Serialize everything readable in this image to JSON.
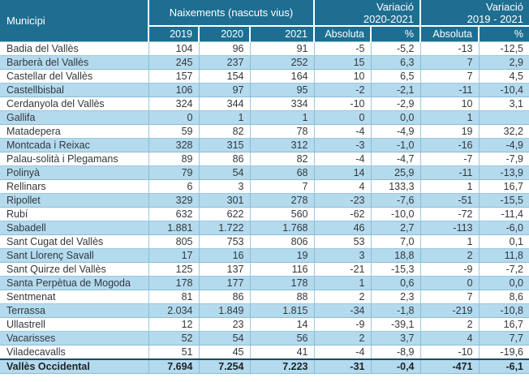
{
  "colors": {
    "header_bg": "#1e6e91",
    "header_text": "#ffffff",
    "stripe_bg": "#b4daee",
    "grid_line": "#9cc8de",
    "total_top_border": "#1a4a63",
    "body_text": "#33383d"
  },
  "chart_data": {
    "type": "table",
    "title": "",
    "column_groups": [
      {
        "label": "Municipi",
        "span": 1
      },
      {
        "label": "Naixements (nascuts vius)",
        "span": 3
      },
      {
        "label": "Variació",
        "sublabel": "2020-2021",
        "span": 2
      },
      {
        "label": "Variació",
        "sublabel": "2019 - 2021",
        "span": 2
      }
    ],
    "columns": [
      "Municipi",
      "2019",
      "2020",
      "2021",
      "Absoluta",
      "%",
      "Absoluta",
      "%"
    ],
    "rows": [
      [
        "Badia del Vallès",
        "104",
        "96",
        "91",
        "-5",
        "-5,2",
        "-13",
        "-12,5"
      ],
      [
        "Barberà del Vallès",
        "245",
        "237",
        "252",
        "15",
        "6,3",
        "7",
        "2,9"
      ],
      [
        "Castellar del Vallès",
        "157",
        "154",
        "164",
        "10",
        "6,5",
        "7",
        "4,5"
      ],
      [
        "Castellbisbal",
        "106",
        "97",
        "95",
        "-2",
        "-2,1",
        "-11",
        "-10,4"
      ],
      [
        "Cerdanyola del Vallès",
        "324",
        "344",
        "334",
        "-10",
        "-2,9",
        "10",
        "3,1"
      ],
      [
        "Gallifa",
        "0",
        "1",
        "1",
        "0",
        "0,0",
        "1",
        ""
      ],
      [
        "Matadepera",
        "59",
        "82",
        "78",
        "-4",
        "-4,9",
        "19",
        "32,2"
      ],
      [
        "Montcada i Reixac",
        "328",
        "315",
        "312",
        "-3",
        "-1,0",
        "-16",
        "-4,9"
      ],
      [
        "Palau-solità i Plegamans",
        "89",
        "86",
        "82",
        "-4",
        "-4,7",
        "-7",
        "-7,9"
      ],
      [
        "Polinyà",
        "79",
        "54",
        "68",
        "14",
        "25,9",
        "-11",
        "-13,9"
      ],
      [
        "Rellinars",
        "6",
        "3",
        "7",
        "4",
        "133,3",
        "1",
        "16,7"
      ],
      [
        "Ripollet",
        "329",
        "301",
        "278",
        "-23",
        "-7,6",
        "-51",
        "-15,5"
      ],
      [
        "Rubí",
        "632",
        "622",
        "560",
        "-62",
        "-10,0",
        "-72",
        "-11,4"
      ],
      [
        "Sabadell",
        "1.881",
        "1.722",
        "1.768",
        "46",
        "2,7",
        "-113",
        "-6,0"
      ],
      [
        "Sant Cugat del Vallès",
        "805",
        "753",
        "806",
        "53",
        "7,0",
        "1",
        "0,1"
      ],
      [
        "Sant Llorenç Savall",
        "17",
        "16",
        "19",
        "3",
        "18,8",
        "2",
        "11,8"
      ],
      [
        "Sant Quirze del Vallès",
        "125",
        "137",
        "116",
        "-21",
        "-15,3",
        "-9",
        "-7,2"
      ],
      [
        "Santa Perpètua de Mogoda",
        "178",
        "177",
        "178",
        "1",
        "0,6",
        "0",
        "0,0"
      ],
      [
        "Sentmenat",
        "81",
        "86",
        "88",
        "2",
        "2,3",
        "7",
        "8,6"
      ],
      [
        "Terrassa",
        "2.034",
        "1.849",
        "1.815",
        "-34",
        "-1,8",
        "-219",
        "-10,8"
      ],
      [
        "Ullastrell",
        "12",
        "23",
        "14",
        "-9",
        "-39,1",
        "2",
        "16,7"
      ],
      [
        "Vacarisses",
        "52",
        "54",
        "56",
        "2",
        "3,7",
        "4",
        "7,7"
      ],
      [
        "Viladecavalls",
        "51",
        "45",
        "41",
        "-4",
        "-8,9",
        "-10",
        "-19,6"
      ]
    ],
    "total_row": [
      "Vallès Occidental",
      "7.694",
      "7.254",
      "7.223",
      "-31",
      "-0,4",
      "-471",
      "-6,1"
    ],
    "layout": {
      "grid": true,
      "striped": true,
      "stripe_start": "white"
    }
  }
}
